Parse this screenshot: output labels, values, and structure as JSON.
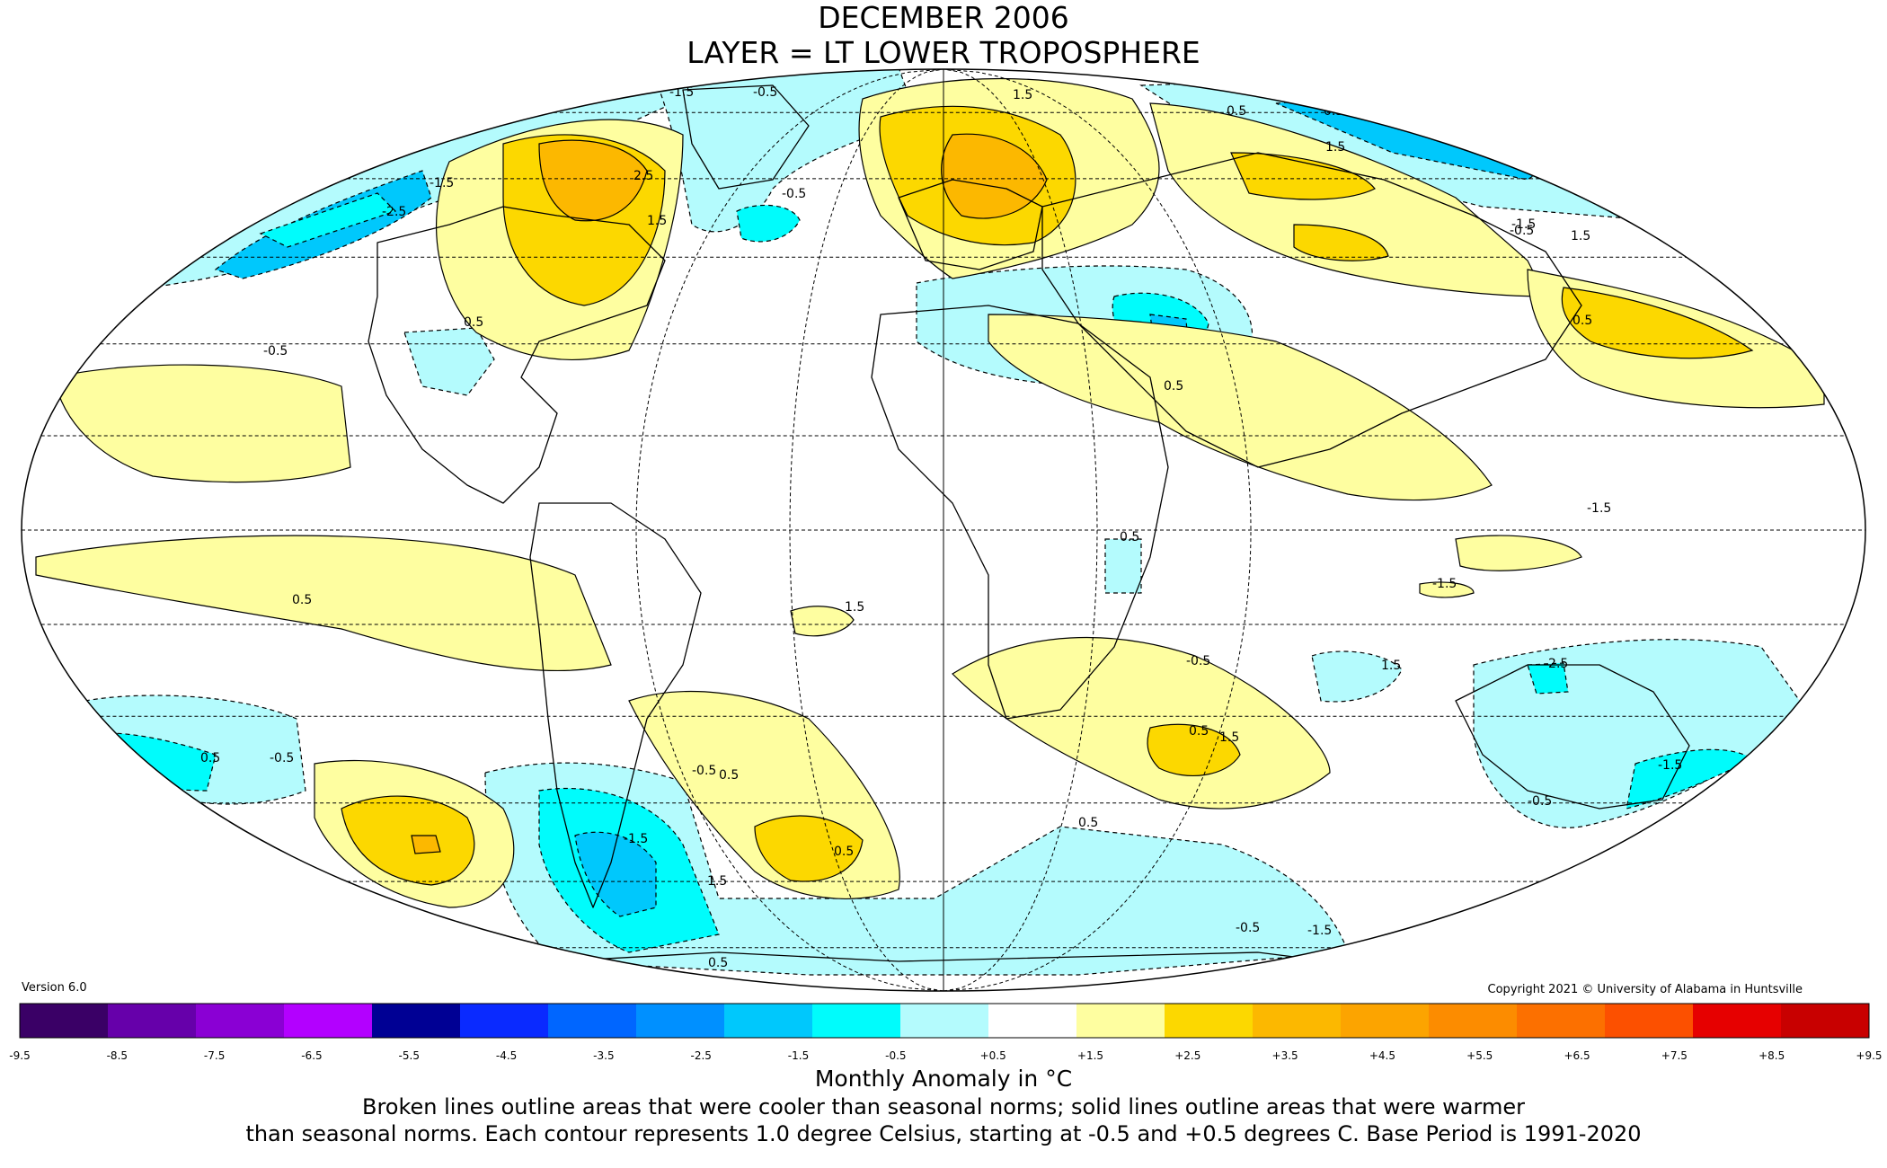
{
  "header": {
    "title": "DECEMBER 2006",
    "subtitle": "LAYER = LT LOWER TROPOSPHERE"
  },
  "map": {
    "projection": "Mollweide",
    "graticule": "dashed",
    "contour_interval_c": 1.0,
    "labels": [
      "-1.5",
      "-0.5",
      "1.5",
      "-2.5",
      "2.5",
      "-1.5",
      "1.5",
      "-0.5",
      "0.5",
      "1.5",
      "0.5",
      "-1.5",
      "1.5",
      "-0.5",
      "0.5",
      "0.5",
      "0.5",
      "-0.5",
      "0.5",
      "-1.5",
      "-0.5",
      "-1.5",
      "1.5",
      "0.5",
      "1.5",
      "-2.5",
      "0.5",
      "1.5",
      "-1.5",
      "-0.5",
      "-1.5",
      "-0.5",
      "0.5",
      "0.5",
      "-0.5",
      "-0.5",
      "0.5",
      "0.5",
      "1.5",
      "-1.5",
      "0.5"
    ],
    "anomaly_colors": {
      "cool_1": "#b4fbfd",
      "cool_2": "#00fcfc",
      "cool_3": "#00c8fc",
      "warm_1": "#fefea0",
      "warm_2": "#fcd800",
      "warm_3": "#fcb800"
    }
  },
  "footer": {
    "version": "Version 6.0",
    "copyright": "Copyright 2021 © University of Alabama in Huntsville",
    "units_label": "Monthly Anomaly in °C",
    "note_line1": "Broken lines outline areas that were cooler than seasonal norms; solid lines outline areas that were warmer",
    "note_line2": "than seasonal norms. Each contour represents 1.0 degree Celsius, starting at -0.5 and +0.5 degrees C. Base Period is 1991-2020"
  },
  "colorbar": {
    "colors": [
      "#3a0066",
      "#6600aa",
      "#8a00d4",
      "#b300ff",
      "#000094",
      "#0a2aff",
      "#0066ff",
      "#0090ff",
      "#00c8fc",
      "#00fcfc",
      "#b4fbfd",
      "#ffffff",
      "#fefea0",
      "#fcd800",
      "#fcb800",
      "#fca400",
      "#fc8c00",
      "#fc7000",
      "#fc5000",
      "#e60000",
      "#c80000"
    ],
    "ticks": [
      "-9.5",
      "-8.5",
      "-7.5",
      "-6.5",
      "-5.5",
      "-4.5",
      "-3.5",
      "-2.5",
      "-1.5",
      "-0.5",
      "+0.5",
      "+1.5",
      "+2.5",
      "+3.5",
      "+4.5",
      "+5.5",
      "+6.5",
      "+7.5",
      "+8.5",
      "+9.5"
    ]
  }
}
